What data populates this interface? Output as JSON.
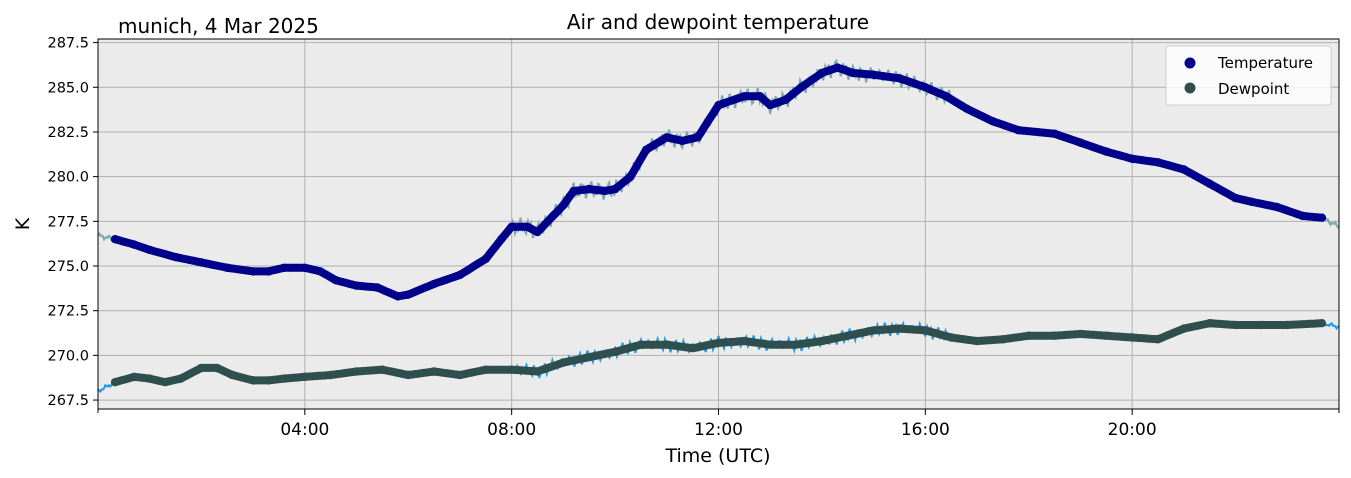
{
  "chart_data": {
    "type": "line",
    "title": "Air and dewpoint temperature",
    "subtitle": "munich, 4 Mar 2025",
    "xlabel": "Time (UTC)",
    "ylabel": "K",
    "x_unit": "hours UTC",
    "xlim": [
      0,
      24
    ],
    "ylim": [
      267.0,
      287.7
    ],
    "x_ticks": [
      {
        "value": 4,
        "label": "04:00"
      },
      {
        "value": 8,
        "label": "08:00"
      },
      {
        "value": 12,
        "label": "12:00"
      },
      {
        "value": 16,
        "label": "16:00"
      },
      {
        "value": 20,
        "label": "20:00"
      }
    ],
    "y_ticks": [
      {
        "value": 267.5,
        "label": "267.5"
      },
      {
        "value": 270.0,
        "label": "270.0"
      },
      {
        "value": 272.5,
        "label": "272.5"
      },
      {
        "value": 275.0,
        "label": "275.0"
      },
      {
        "value": 277.5,
        "label": "277.5"
      },
      {
        "value": 280.0,
        "label": "280.0"
      },
      {
        "value": 282.5,
        "label": "282.5"
      },
      {
        "value": 285.0,
        "label": "285.0"
      },
      {
        "value": 287.5,
        "label": "287.5"
      }
    ],
    "grid": true,
    "background": "#ebebeb",
    "legend_position": "top-right",
    "series": [
      {
        "name": "Temperature",
        "color": "#00008b",
        "raw_color": "#7aa9ae",
        "x": [
          0.0,
          0.33,
          0.7,
          1.0,
          1.5,
          2.0,
          2.5,
          3.0,
          3.3,
          3.6,
          4.0,
          4.3,
          4.6,
          5.0,
          5.4,
          5.8,
          6.0,
          6.5,
          7.0,
          7.5,
          7.8,
          8.0,
          8.3,
          8.5,
          8.8,
          9.0,
          9.2,
          9.5,
          9.8,
          10.0,
          10.3,
          10.6,
          11.0,
          11.3,
          11.6,
          12.0,
          12.5,
          12.8,
          13.0,
          13.3,
          13.6,
          14.0,
          14.3,
          14.6,
          15.0,
          15.5,
          16.0,
          16.4,
          16.8,
          17.3,
          17.8,
          18.5,
          19.0,
          19.5,
          20.0,
          20.5,
          21.0,
          21.5,
          22.0,
          22.3,
          22.8,
          23.3,
          23.67,
          24.0
        ],
        "values": [
          276.7,
          276.5,
          276.2,
          275.9,
          275.5,
          275.2,
          274.9,
          274.7,
          274.7,
          274.9,
          274.9,
          274.7,
          274.2,
          273.9,
          273.8,
          273.3,
          273.4,
          274.0,
          274.5,
          275.4,
          276.5,
          277.2,
          277.2,
          276.9,
          277.8,
          278.4,
          279.2,
          279.3,
          279.2,
          279.3,
          280.0,
          281.5,
          282.2,
          282.0,
          282.2,
          284.0,
          284.5,
          284.5,
          284.0,
          284.3,
          285.0,
          285.8,
          286.1,
          285.8,
          285.7,
          285.5,
          285.0,
          284.5,
          283.8,
          283.1,
          282.6,
          282.4,
          281.9,
          281.4,
          281.0,
          280.8,
          280.4,
          279.6,
          278.8,
          278.6,
          278.3,
          277.8,
          277.7,
          277.2
        ]
      },
      {
        "name": "Dewpoint",
        "color": "#2f4f4f",
        "raw_color": "#1e9ae8",
        "x": [
          0.0,
          0.33,
          0.7,
          1.0,
          1.3,
          1.6,
          2.0,
          2.3,
          2.6,
          3.0,
          3.3,
          3.6,
          4.0,
          4.5,
          5.0,
          5.5,
          6.0,
          6.5,
          7.0,
          7.5,
          8.0,
          8.5,
          9.0,
          9.5,
          10.0,
          10.5,
          11.0,
          11.5,
          12.0,
          12.5,
          13.0,
          13.5,
          14.0,
          14.5,
          15.0,
          15.5,
          16.0,
          16.5,
          17.0,
          17.5,
          18.0,
          18.5,
          19.0,
          19.5,
          20.0,
          20.5,
          21.0,
          21.5,
          22.0,
          22.5,
          23.0,
          23.67,
          24.0
        ],
        "values": [
          268.0,
          268.5,
          268.8,
          268.7,
          268.5,
          268.7,
          269.3,
          269.3,
          268.9,
          268.6,
          268.6,
          268.7,
          268.8,
          268.9,
          269.1,
          269.2,
          268.9,
          269.1,
          268.9,
          269.2,
          269.2,
          269.1,
          269.6,
          269.9,
          270.2,
          270.6,
          270.6,
          270.4,
          270.7,
          270.8,
          270.6,
          270.6,
          270.8,
          271.1,
          271.4,
          271.5,
          271.4,
          271.0,
          270.8,
          270.9,
          271.1,
          271.1,
          271.2,
          271.1,
          271.0,
          270.9,
          271.5,
          271.8,
          271.7,
          271.7,
          271.7,
          271.8,
          271.6
        ]
      }
    ]
  }
}
